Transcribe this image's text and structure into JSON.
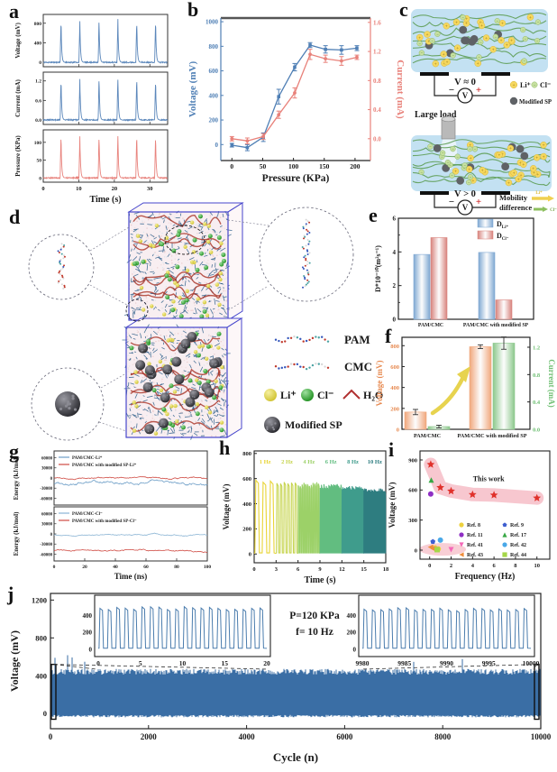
{
  "figure": {
    "panels": {
      "a": {
        "label": "a"
      },
      "b": {
        "label": "b"
      },
      "c": {
        "label": "c"
      },
      "d": {
        "label": "d"
      },
      "e": {
        "label": "e"
      },
      "f": {
        "label": "f"
      },
      "g": {
        "label": "g"
      },
      "h": {
        "label": "h"
      },
      "i": {
        "label": "i"
      },
      "j": {
        "label": "j"
      }
    },
    "schematic_c": {
      "top_voltage": "V ≈ 0",
      "bottom_voltage": "V > 0",
      "minus": "−",
      "plus": "+",
      "meter": "V",
      "load_label": "Large load",
      "mobility_line1": "Mobility",
      "mobility_line2": "difference",
      "legend": {
        "li": "Li⁺",
        "cl": "Cl⁻",
        "sp": "Modified SP"
      },
      "arrow_li": "Li⁺",
      "arrow_cl": "Cl⁻",
      "colors": {
        "gel": "#c3e1f2",
        "chain": "#5f9e57",
        "li": "#f5d75e",
        "cl": "#c6e0a0",
        "sp": "#5f6266"
      }
    },
    "sim_d": {
      "legend": {
        "pam": "PAM",
        "cmc": "CMC",
        "li": "Li⁺",
        "cl": "Cl⁻",
        "h2o": "H₂O",
        "sp": "Modified SP"
      },
      "colors": {
        "li": "#e3d94e",
        "cl": "#3fae3f",
        "sp": "#3b3b3e",
        "water": "#e9c9cb",
        "chain": "#2d5f8a",
        "strand": "#a93226",
        "frame": "#4646cc"
      }
    }
  },
  "chart_data": [
    {
      "panel": "a",
      "type": "line",
      "xlabel": "Time (s)",
      "xticks": [
        0,
        10,
        20,
        30
      ],
      "xlim": [
        0,
        35
      ],
      "spike_times": [
        5,
        10.3,
        15.7,
        21,
        26.3,
        31.6
      ],
      "subplots": [
        {
          "ylabel": "Voltage (mV)",
          "yticks": [
            "0",
            "400",
            "800"
          ],
          "ylim": [
            -90,
            980
          ],
          "peak": 860,
          "color": "#5b87bb"
        },
        {
          "ylabel": "Current (mA)",
          "yticks": [
            "0.0",
            "0.6",
            "1.2"
          ],
          "ylim": [
            -0.14,
            1.47
          ],
          "peak": 1.28,
          "color": "#5b87bb"
        },
        {
          "ylabel": "Pressure (KPa)",
          "yticks": [
            "0",
            "50",
            "100"
          ],
          "ylim": [
            -12,
            135
          ],
          "peak": 120,
          "color": "#e8837d"
        }
      ]
    },
    {
      "panel": "b",
      "type": "line",
      "xlabel": "Pressure (KPa)",
      "xticks": [
        0,
        50,
        100,
        150,
        200
      ],
      "xlim": [
        -18,
        225
      ],
      "x": [
        0,
        25,
        51,
        76,
        102,
        127,
        152,
        178,
        203
      ],
      "series": [
        {
          "name": "Voltage (mV)",
          "axis": "left",
          "color": "#4f7fb5",
          "marker": "square",
          "values": [
            -5,
            -25,
            60,
            390,
            630,
            810,
            775,
            770,
            785
          ],
          "errors": [
            15,
            25,
            35,
            60,
            30,
            20,
            30,
            35,
            20
          ]
        },
        {
          "name": "Current (mA)",
          "axis": "right",
          "color": "#e8817a",
          "marker": "circle",
          "values": [
            0,
            -0.03,
            0.03,
            0.33,
            0.63,
            1.16,
            1.1,
            1.07,
            1.12
          ],
          "errors": [
            0.03,
            0.04,
            0.04,
            0.05,
            0.07,
            0.07,
            0.05,
            0.06,
            0.03
          ]
        }
      ],
      "left": {
        "label": "Voltage (mV)",
        "ticks": [
          "0",
          "200",
          "400",
          "600",
          "800",
          "1000"
        ],
        "lim": [
          -130,
          1030
        ],
        "color": "#4f7fb5"
      },
      "right": {
        "label": "Current (mA)",
        "ticks": [
          "0.0",
          "0.4",
          "0.8",
          "1.2",
          "1.6"
        ],
        "lim": [
          -0.3,
          1.66
        ],
        "color": "#e8817a"
      }
    },
    {
      "panel": "e",
      "type": "bar",
      "categories": [
        "PAM/CMC",
        "PAM/CMC with modified SP"
      ],
      "series": [
        {
          "name_main": "D",
          "name_sub": "Li⁺",
          "color": "#7fa8d2",
          "values": [
            3.85,
            3.97
          ]
        },
        {
          "name_main": "D",
          "name_sub": "Cl⁻",
          "color": "#d8837d",
          "values": [
            4.85,
            1.15
          ]
        }
      ],
      "ylabel": "D*10⁻¹⁰(m²s⁻¹)",
      "yticks": [
        0,
        2,
        4,
        6
      ],
      "ylim": [
        0,
        6
      ]
    },
    {
      "panel": "f",
      "type": "bar",
      "categories": [
        "PAM/CMC",
        "PAM/CMC with modified SP"
      ],
      "series": [
        {
          "name": "Voltage (mV)",
          "axis": "left",
          "color": "#f0a77c",
          "values": [
            165,
            790
          ],
          "errors": [
            25,
            18
          ]
        },
        {
          "name": "Current (mA)",
          "axis": "right",
          "color": "#8cc88c",
          "values": [
            0.04,
            1.26
          ],
          "errors": [
            0.02,
            0.09
          ]
        }
      ],
      "left": {
        "label": "Voltage (mV)",
        "ticks": [
          "0",
          "200",
          "400",
          "600",
          "800"
        ],
        "lim": [
          0,
          880
        ],
        "color": "#e78a51"
      },
      "right": {
        "label": "Current (mA)",
        "ticks": [
          "0.0",
          "0.4",
          "0.8",
          "1.2"
        ],
        "lim": [
          0,
          1.345
        ],
        "color": "#6fbf73"
      }
    },
    {
      "panel": "g",
      "type": "line",
      "xlabel": "Time (ns)",
      "xticks": [
        0,
        20,
        40,
        60,
        80,
        100
      ],
      "xlim": [
        0,
        100
      ],
      "ylabel": "Energy (kJ/mol)",
      "yticks": [
        -60000,
        -30000,
        0,
        30000,
        60000
      ],
      "ylim": [
        -80000,
        80000
      ],
      "subplots": [
        {
          "series": [
            {
              "name": "PAM/CMC-Li⁺",
              "color": "#6d9ec7",
              "approx_mean": -14000,
              "wiggle": 5200
            },
            {
              "name": "PAM/CMC with modified SP-Li⁺",
              "color": "#cf4a42",
              "approx_mean": -800,
              "wiggle": 2400
            }
          ]
        },
        {
          "series": [
            {
              "name": "PAM/CMC-Cl⁻",
              "color": "#8ab4d4",
              "approx_mean": -2500,
              "wiggle": 2000
            },
            {
              "name": "PAM/CMC with modified SP-Cl⁻",
              "color": "#cf4a42",
              "approx_mean": -49000,
              "wiggle": 2600
            }
          ]
        }
      ]
    },
    {
      "panel": "h",
      "type": "line",
      "xlabel": "Time (s)",
      "xticks": [
        0,
        3,
        6,
        9,
        12,
        15,
        18
      ],
      "xlim": [
        0,
        18
      ],
      "ylabel": "Voltage (mV)",
      "yticks": [
        "0",
        "200",
        "400",
        "600",
        "800"
      ],
      "ylim": [
        -70,
        820
      ],
      "segments": [
        {
          "label": "1 Hz",
          "freq": 1,
          "amp": 585,
          "color": "#e8d435"
        },
        {
          "label": "2 Hz",
          "freq": 2,
          "amp": 575,
          "color": "#c6d44e"
        },
        {
          "label": "4 Hz",
          "freq": 4,
          "amp": 555,
          "color": "#9cd168"
        },
        {
          "label": "6 Hz",
          "freq": 6,
          "amp": 540,
          "color": "#62bd80"
        },
        {
          "label": "8 Hz",
          "freq": 8,
          "amp": 525,
          "color": "#3f9c8c"
        },
        {
          "label": "10 Hz",
          "freq": 10,
          "amp": 510,
          "color": "#2e7d80"
        }
      ]
    },
    {
      "panel": "i",
      "type": "scatter",
      "xlabel": "Frequency (Hz)",
      "xticks": [
        0,
        2,
        4,
        6,
        8,
        10
      ],
      "xlim": [
        -0.9,
        11.2
      ],
      "ylabel": "Voltage (mV)",
      "yticks": [
        0,
        300,
        600,
        900
      ],
      "ylim": [
        -90,
        990
      ],
      "this_work": {
        "label": "This work",
        "color": "#e0312b",
        "marker": "star",
        "band_color": "#f5b9c3",
        "points": [
          [
            0.1,
            855
          ],
          [
            1,
            625
          ],
          [
            2,
            590
          ],
          [
            4,
            555
          ],
          [
            6,
            550
          ],
          [
            10,
            520
          ]
        ]
      },
      "refs": [
        {
          "name": "Ref. 8",
          "color": "#edd13d",
          "marker": "circle",
          "points": [
            [
              0.5,
              22
            ],
            [
              0.8,
              12
            ]
          ]
        },
        {
          "name": "Ref. 9",
          "color": "#3f5fd0",
          "marker": "pentagon",
          "points": [
            [
              0.3,
              85
            ]
          ]
        },
        {
          "name": "Ref. 11",
          "color": "#8f2fc4",
          "marker": "circle",
          "points": [
            [
              0.1,
              560
            ]
          ]
        },
        {
          "name": "Ref. 17",
          "color": "#37a845",
          "marker": "triangle-up",
          "points": [
            [
              0.15,
              700
            ]
          ]
        },
        {
          "name": "Ref. 41",
          "color": "#f468b8",
          "marker": "triangle-down",
          "points": [
            [
              0.5,
              8
            ],
            [
              2,
              4
            ]
          ]
        },
        {
          "name": "Ref. 42",
          "color": "#49a8e8",
          "marker": "circle",
          "points": [
            [
              1,
              100
            ]
          ]
        },
        {
          "name": "Ref. 43",
          "color": "#ef8d3a",
          "marker": "triangle-left",
          "points": [
            [
              0.08,
              30
            ],
            [
              0.3,
              15
            ]
          ]
        },
        {
          "name": "Ref. 44",
          "color": "#a5d748",
          "marker": "square",
          "points": [
            [
              0.7,
              5
            ]
          ]
        }
      ]
    },
    {
      "panel": "j",
      "type": "line",
      "xlabel": "Cycle (n)",
      "xticks": [
        0,
        2000,
        4000,
        6000,
        8000,
        10000
      ],
      "xlim": [
        0,
        10000
      ],
      "ylabel": "Voltage (mV)",
      "yticks": [
        0,
        400,
        800,
        1200
      ],
      "ylim": [
        -160,
        1270
      ],
      "band": {
        "top_mean": 430,
        "top_spread": 60,
        "bottom_mean": -15,
        "bottom_spread": 25,
        "color": "#3a6ea5"
      },
      "annotation": [
        "P=120 KPa",
        "f= 10 Hz"
      ],
      "insets": [
        {
          "xticks": [
            0,
            5,
            10,
            15,
            20
          ],
          "yticks": [
            400,
            200,
            0
          ],
          "cycles": 20,
          "amp": 490
        },
        {
          "xticks": [
            9980,
            9985,
            9990,
            9995,
            10000
          ],
          "yticks": [
            400,
            200,
            0
          ],
          "cycles": 20,
          "amp": 475
        }
      ]
    }
  ]
}
